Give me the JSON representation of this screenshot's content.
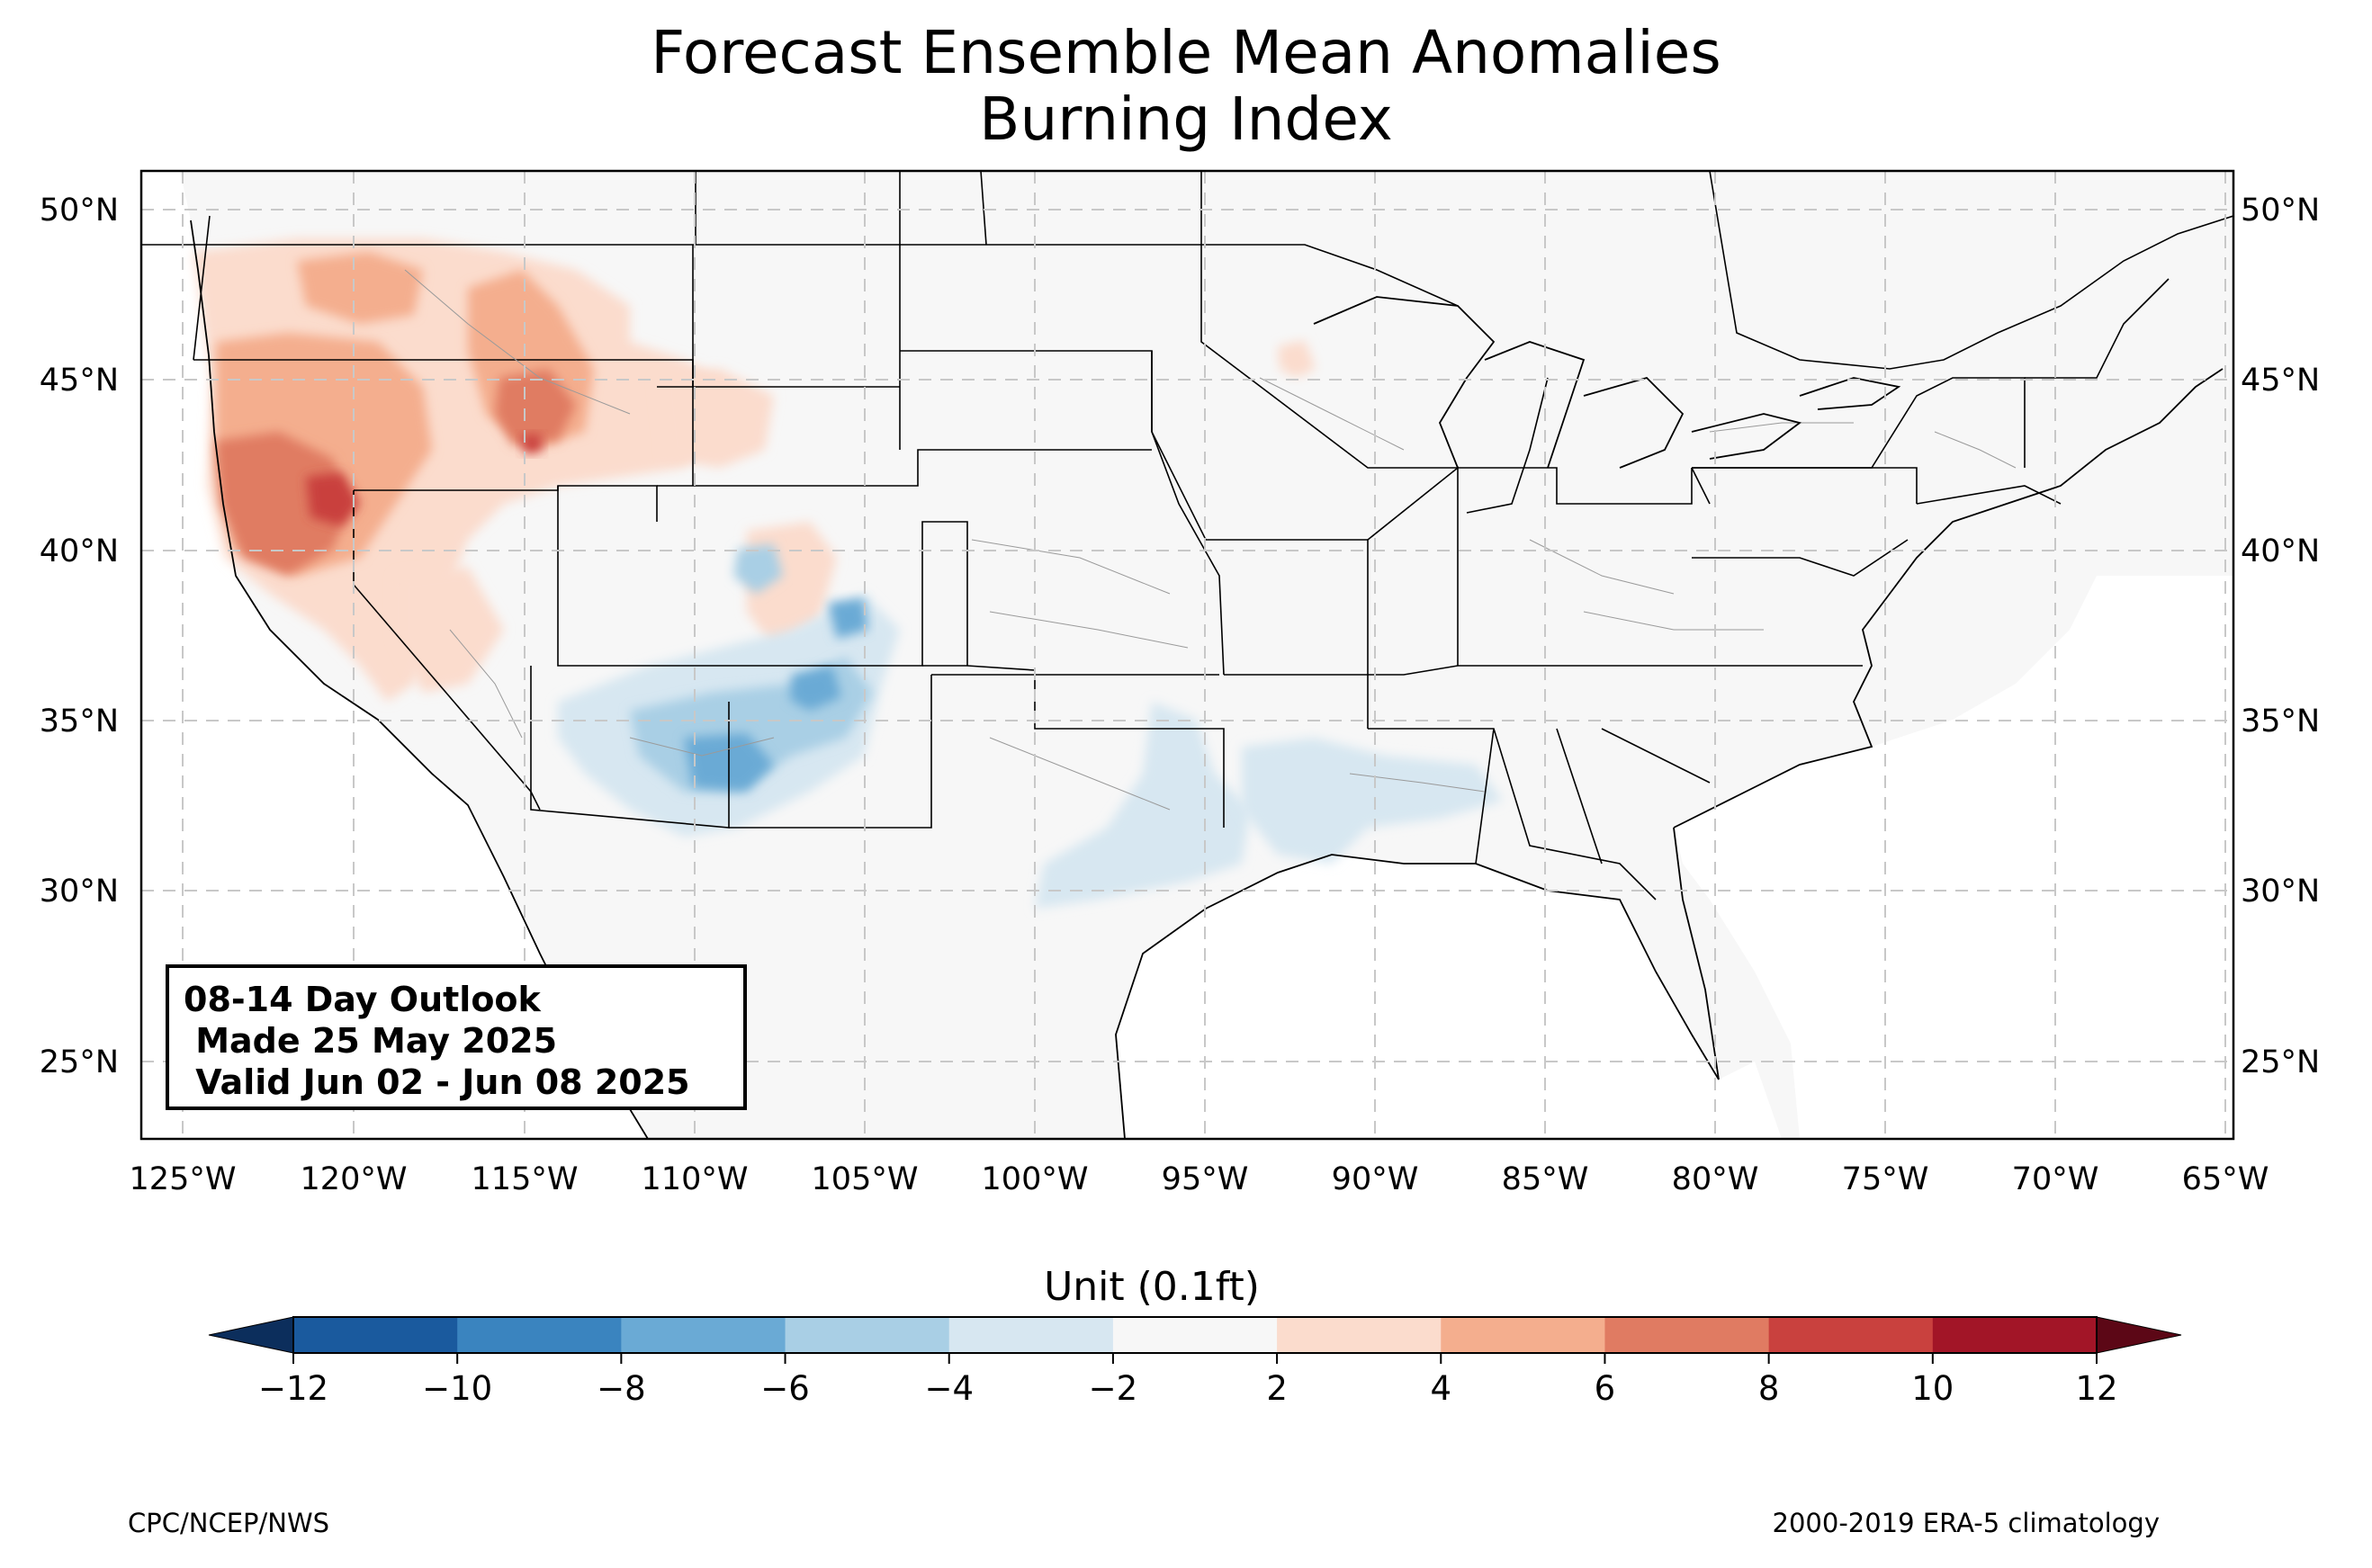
{
  "title_line1": "Forecast Ensemble Mean Anomalies",
  "title_line2": "Burning Index",
  "outlook": {
    "line1": "08-14 Day Outlook",
    "line2": " Made 25 May 2025",
    "line3": " Valid Jun 02 - Jun 08 2025"
  },
  "colorbar": {
    "title": "Unit (0.1ft)",
    "ticks": [
      "−12",
      "−10",
      "−8",
      "−6",
      "−4",
      "−2",
      "2",
      "4",
      "6",
      "8",
      "10",
      "12"
    ],
    "colors": [
      "#1a5a9e",
      "#3a84bf",
      "#6aaad5",
      "#a9cfe5",
      "#d7e7f1",
      "#f7f7f7",
      "#fbdccd",
      "#f4ae8e",
      "#e07b62",
      "#c9413e",
      "#a21527"
    ],
    "under_color": "#0c2e5c",
    "over_color": "#5c0716"
  },
  "map": {
    "lon_range": [
      -126.3,
      -64.9
    ],
    "lat_range": [
      22.8,
      51.2
    ],
    "lat_labels": [
      "50°N",
      "45°N",
      "40°N",
      "35°N",
      "30°N",
      "25°N"
    ],
    "lon_labels": [
      "125°W",
      "120°W",
      "115°W",
      "110°W",
      "105°W",
      "100°W",
      "95°W",
      "90°W",
      "85°W",
      "80°W",
      "75°W",
      "70°W",
      "65°W"
    ],
    "gridlines": true,
    "background_color": "#f7f7f7"
  },
  "footer": {
    "left": "CPC/NCEP/NWS",
    "right": "2000-2019 ERA-5 climatology"
  }
}
